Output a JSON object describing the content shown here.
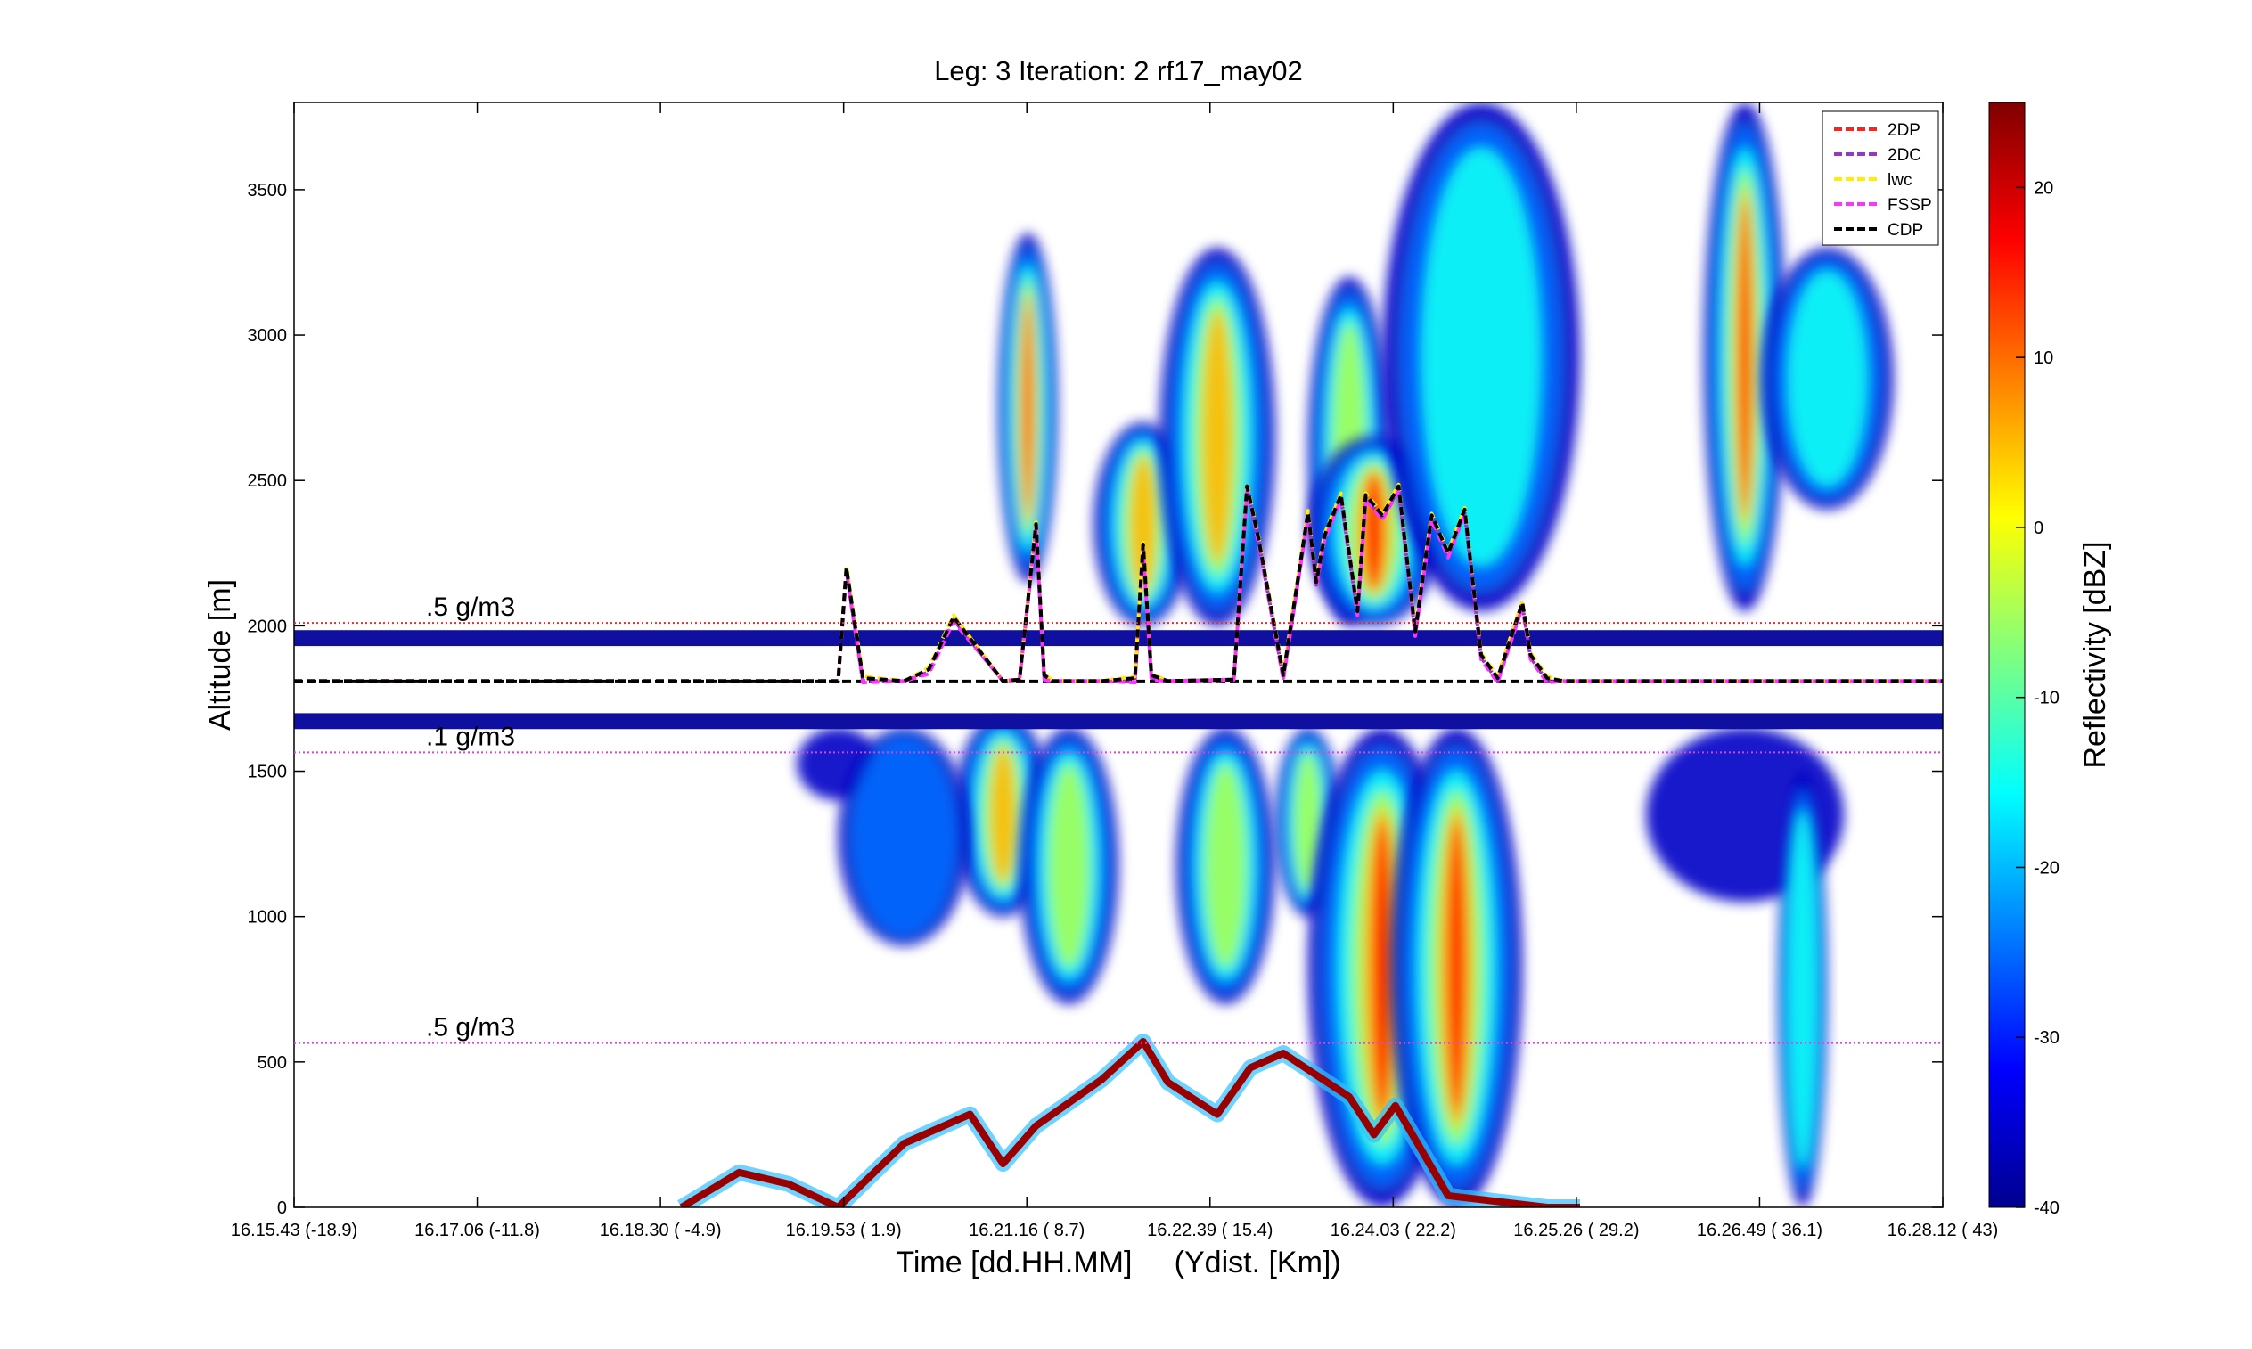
{
  "chart_data": {
    "type": "heatmap",
    "title": "Leg: 3  Iteration: 2  rf17_may02",
    "xlabel": "Time [dd.HH.MM]     (Ydist. [Km])",
    "ylabel": "Altitude [m]",
    "ylim": [
      0,
      3800
    ],
    "yticks": [
      0,
      500,
      1000,
      1500,
      2000,
      2500,
      3000,
      3500
    ],
    "xticks": [
      {
        "time": "16.15.43",
        "dist": "(-18.9)"
      },
      {
        "time": "16.17.06",
        "dist": "(-11.8)"
      },
      {
        "time": "16.18.30",
        "dist": "( -4.9)"
      },
      {
        "time": "16.19.53",
        "dist": "(  1.9)"
      },
      {
        "time": "16.21.16",
        "dist": "(  8.7)"
      },
      {
        "time": "16.22.39",
        "dist": "( 15.4)"
      },
      {
        "time": "16.24.03",
        "dist": "( 22.2)"
      },
      {
        "time": "16.25.26",
        "dist": "( 29.2)"
      },
      {
        "time": "16.26.49",
        "dist": "( 36.1)"
      },
      {
        "time": "16.28.12",
        "dist": "(   43)"
      }
    ],
    "colorbar": {
      "label": "Reflectivity [dBZ]",
      "range": [
        -40,
        25
      ],
      "ticks": [
        -40,
        -30,
        -20,
        -10,
        0,
        10,
        20
      ],
      "colormap": "jet"
    },
    "flight_level_m": 1810,
    "blank_band_m": [
      1700,
      1930
    ],
    "reference_lines": [
      {
        "label": ".5 g/m3",
        "altitude_m": 2010,
        "color": "#e03030"
      },
      {
        "label": ".1 g/m3",
        "altitude_m": 1565,
        "color": "#e040e0"
      },
      {
        "label": ".5 g/m3",
        "altitude_m": 565,
        "color": "#e040e0"
      }
    ],
    "legend_position": "top-right",
    "series": [
      {
        "name": "2DP",
        "color": "#ff2020",
        "style": "dashed"
      },
      {
        "name": "2DC",
        "color": "#9933cc",
        "style": "dashed"
      },
      {
        "name": "lwc",
        "color": "#ffee00",
        "style": "dashed"
      },
      {
        "name": "FSSP",
        "color": "#ff33ff",
        "style": "dashed"
      },
      {
        "name": "CDP",
        "color": "#000000",
        "style": "dashed"
      }
    ],
    "cloud_columns": [
      {
        "x": 0.445,
        "half_width": 0.018,
        "bottom_m": 2150,
        "top_m": 3350,
        "core_dbz": 18
      },
      {
        "x": 0.43,
        "half_width": 0.03,
        "bottom_m": 1000,
        "top_m": 1700,
        "core_dbz": 5
      },
      {
        "x": 0.47,
        "half_width": 0.03,
        "bottom_m": 700,
        "top_m": 1650,
        "core_dbz": -5
      },
      {
        "x": 0.515,
        "half_width": 0.03,
        "bottom_m": 2000,
        "top_m": 2700,
        "core_dbz": 5
      },
      {
        "x": 0.56,
        "half_width": 0.035,
        "bottom_m": 2000,
        "top_m": 3300,
        "core_dbz": 10
      },
      {
        "x": 0.565,
        "half_width": 0.03,
        "bottom_m": 700,
        "top_m": 1650,
        "core_dbz": -5
      },
      {
        "x": 0.615,
        "half_width": 0.02,
        "bottom_m": 1000,
        "top_m": 1650,
        "core_dbz": 0
      },
      {
        "x": 0.64,
        "half_width": 0.025,
        "bottom_m": 2000,
        "top_m": 3200,
        "core_dbz": -5
      },
      {
        "x": 0.655,
        "half_width": 0.04,
        "bottom_m": 2000,
        "top_m": 2650,
        "core_dbz": 20
      },
      {
        "x": 0.66,
        "half_width": 0.045,
        "bottom_m": 0,
        "top_m": 1650,
        "core_dbz": 18
      },
      {
        "x": 0.705,
        "half_width": 0.04,
        "bottom_m": 0,
        "top_m": 1650,
        "core_dbz": 15
      },
      {
        "x": 0.72,
        "half_width": 0.06,
        "bottom_m": 2050,
        "top_m": 3800,
        "core_dbz": -15
      },
      {
        "x": 0.88,
        "half_width": 0.025,
        "bottom_m": 2050,
        "top_m": 3800,
        "core_dbz": 20
      },
      {
        "x": 0.93,
        "half_width": 0.04,
        "bottom_m": 2400,
        "top_m": 3300,
        "core_dbz": -15
      },
      {
        "x": 0.88,
        "half_width": 0.06,
        "bottom_m": 1050,
        "top_m": 1650,
        "core_dbz": -32
      },
      {
        "x": 0.915,
        "half_width": 0.015,
        "bottom_m": 0,
        "top_m": 1500,
        "core_dbz": -15
      },
      {
        "x": 0.33,
        "half_width": 0.025,
        "bottom_m": 1400,
        "top_m": 1650,
        "core_dbz": -35
      },
      {
        "x": 0.37,
        "half_width": 0.04,
        "bottom_m": 900,
        "top_m": 1650,
        "core_dbz": -25
      }
    ],
    "surface_trace": {
      "x": [
        0.235,
        0.27,
        0.3,
        0.33,
        0.37,
        0.41,
        0.43,
        0.45,
        0.49,
        0.515,
        0.53,
        0.56,
        0.58,
        0.6,
        0.64,
        0.655,
        0.668,
        0.7,
        0.76,
        0.78
      ],
      "y_m": [
        0,
        120,
        80,
        0,
        220,
        320,
        150,
        280,
        440,
        570,
        430,
        320,
        480,
        530,
        380,
        250,
        350,
        40,
        0,
        0
      ]
    },
    "probe_trace": {
      "x": [
        0.0,
        0.27,
        0.33,
        0.335,
        0.345,
        0.37,
        0.385,
        0.4,
        0.43,
        0.44,
        0.45,
        0.455,
        0.46,
        0.49,
        0.51,
        0.515,
        0.52,
        0.53,
        0.57,
        0.578,
        0.585,
        0.6,
        0.615,
        0.62,
        0.625,
        0.635,
        0.645,
        0.65,
        0.66,
        0.67,
        0.68,
        0.69,
        0.7,
        0.71,
        0.72,
        0.73,
        0.745,
        0.75,
        0.76,
        0.77,
        1.0
      ],
      "y_m": [
        1810,
        1810,
        1810,
        2200,
        1820,
        1810,
        1850,
        2030,
        1810,
        1815,
        2350,
        1830,
        1810,
        1810,
        1820,
        2280,
        1830,
        1810,
        1815,
        2480,
        2300,
        1830,
        2390,
        2150,
        2310,
        2450,
        2050,
        2450,
        2380,
        2480,
        1980,
        2380,
        2250,
        2400,
        1900,
        1820,
        2080,
        1900,
        1820,
        1810,
        1810
      ]
    }
  }
}
